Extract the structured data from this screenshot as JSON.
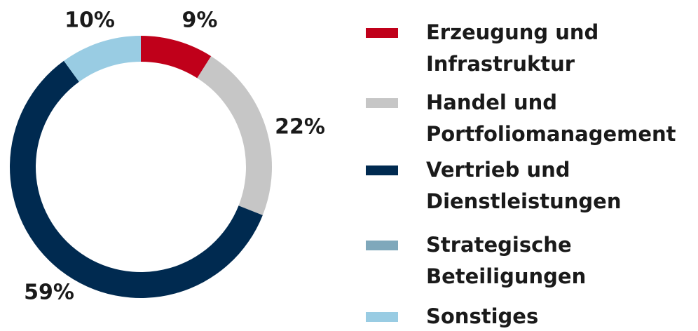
{
  "chart_data": {
    "type": "donut",
    "series": [
      {
        "name": "Erzeugung und Infrastruktur",
        "color": "#c0001a",
        "value": 9,
        "value_label": "9%"
      },
      {
        "name": "Handel und Portfoliomanagement",
        "color": "#c6c6c6",
        "value": 22,
        "value_label": "22%"
      },
      {
        "name": "Vertrieb und Dienstleistungen",
        "color": "#002a50",
        "value": 59,
        "value_label": "59%"
      },
      {
        "name": "Strategische Beteiligungen",
        "color": "#7fa8bb",
        "value": 0,
        "value_label": null
      },
      {
        "name": "Sonstiges",
        "color": "#99cce3",
        "value": 10,
        "value_label": "10%"
      }
    ]
  }
}
